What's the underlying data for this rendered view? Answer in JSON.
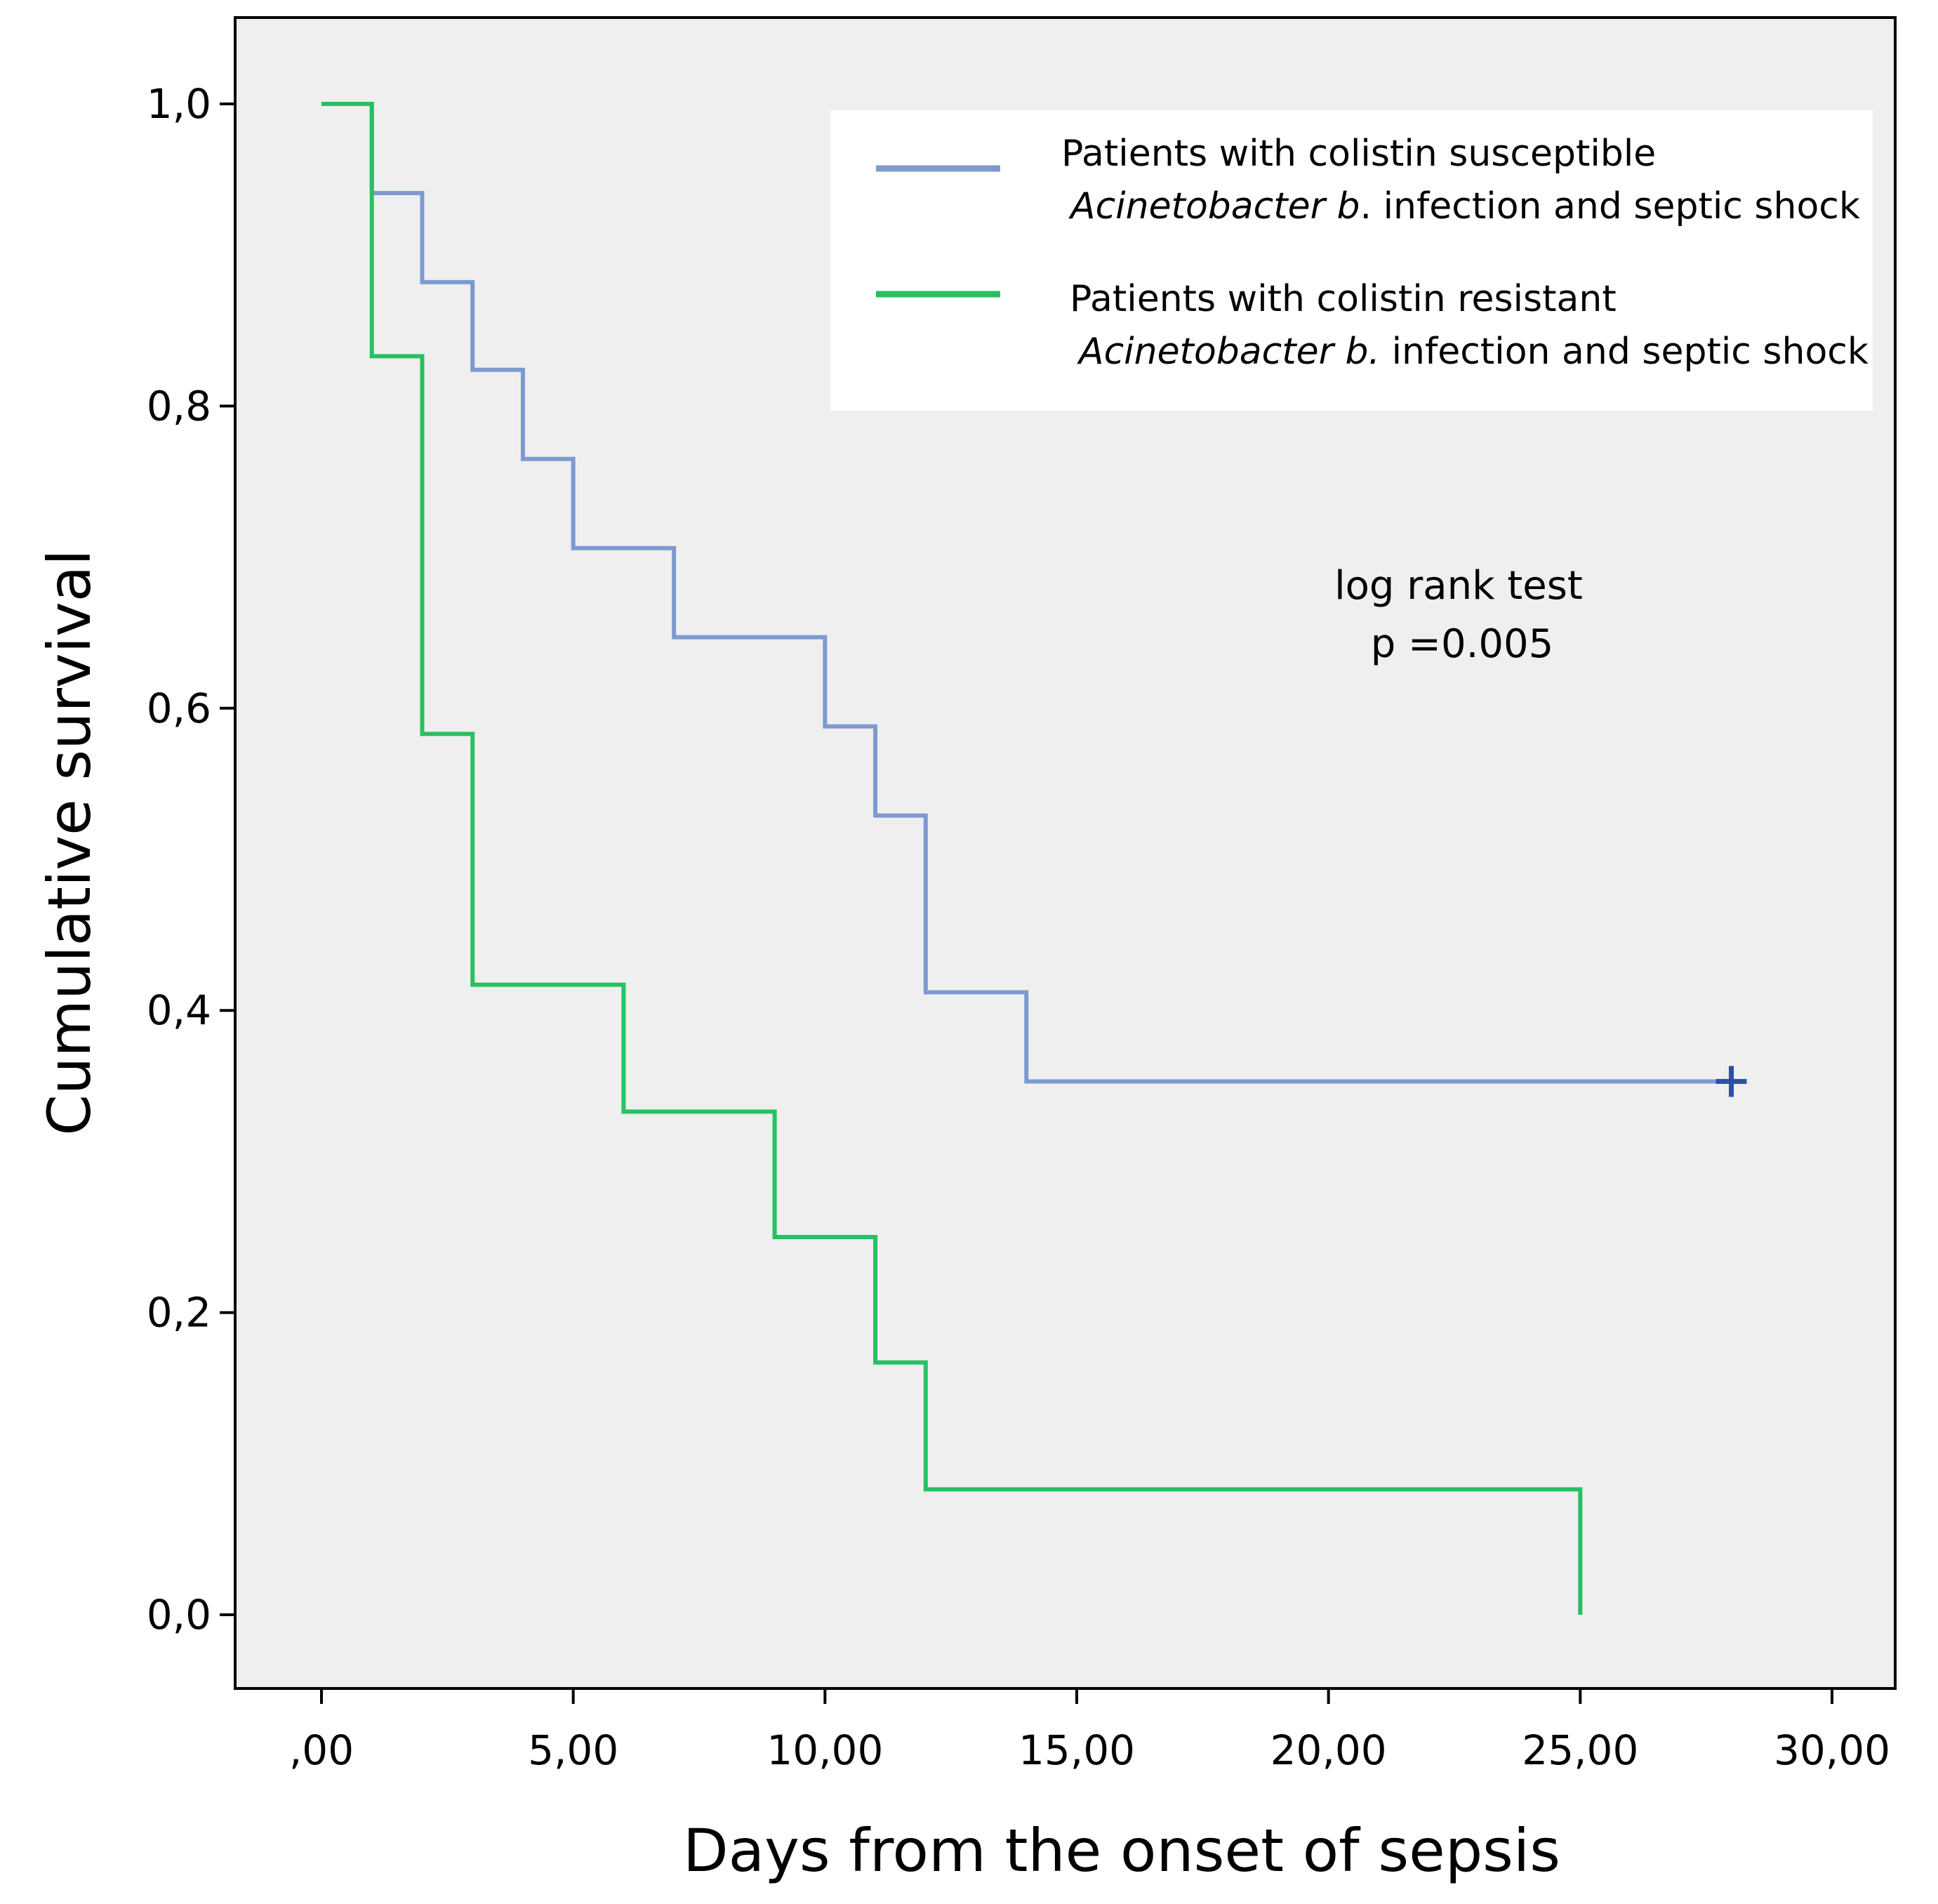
{
  "chart_data": {
    "type": "line",
    "subtype": "kaplan-meier-step",
    "title": "",
    "xlabel": "Days from  the onset of sepsis",
    "ylabel": "Cumulative survival",
    "xlim": [
      -1.7,
      31.0
    ],
    "ylim": [
      -0.05,
      1.06
    ],
    "x_ticks": [
      0,
      5,
      10,
      15,
      20,
      25,
      30
    ],
    "x_tick_labels": [
      ",00",
      "5,00",
      "10,00",
      "15,00",
      "20,00",
      "25,00",
      "30,00"
    ],
    "y_ticks": [
      0,
      0.2,
      0.4,
      0.6,
      0.8,
      1.0
    ],
    "y_tick_labels": [
      "0,0",
      "0,2",
      "0,4",
      "0,6",
      "0,8",
      "1,0"
    ],
    "grid": false,
    "legend_position": "top-right",
    "series": [
      {
        "name": "Patients with colistin susceptible Acinetobacter b. infection and septic shock",
        "legend_line1": "Patients with colistin susceptible",
        "legend_italic": "Acinetobacter b",
        "legend_rest": ". infection  and septic shock",
        "color": "#7d9ad0",
        "censor_color": "#2a50a8",
        "start": [
          0,
          1.0
        ],
        "steps": [
          {
            "x": 1,
            "y": 0.941
          },
          {
            "x": 2,
            "y": 0.882
          },
          {
            "x": 3,
            "y": 0.824
          },
          {
            "x": 4,
            "y": 0.765
          },
          {
            "x": 5,
            "y": 0.706
          },
          {
            "x": 7,
            "y": 0.647
          },
          {
            "x": 10,
            "y": 0.588
          },
          {
            "x": 11,
            "y": 0.529
          },
          {
            "x": 12,
            "y": 0.412
          },
          {
            "x": 14,
            "y": 0.353
          }
        ],
        "end_x": 28,
        "censored": [
          {
            "x": 28,
            "y": 0.353
          }
        ]
      },
      {
        "name": "Patients with colistin resistant Acinetobacter b. infection and septic shock",
        "legend_line1": "Patients with colistin resistant",
        "legend_italic": "Acinetobacter b.",
        "legend_rest": " infection  and septic shock",
        "color": "#27c062",
        "start": [
          0,
          1.0
        ],
        "steps": [
          {
            "x": 1,
            "y": 0.833
          },
          {
            "x": 2,
            "y": 0.583
          },
          {
            "x": 3,
            "y": 0.417
          },
          {
            "x": 6,
            "y": 0.333
          },
          {
            "x": 9,
            "y": 0.25
          },
          {
            "x": 11,
            "y": 0.167
          },
          {
            "x": 12,
            "y": 0.083
          },
          {
            "x": 25,
            "y": 0.0
          }
        ],
        "end_x": 25,
        "censored": []
      }
    ],
    "annotations": {
      "line1": "log  rank test",
      "line2": "p =0.005"
    }
  }
}
